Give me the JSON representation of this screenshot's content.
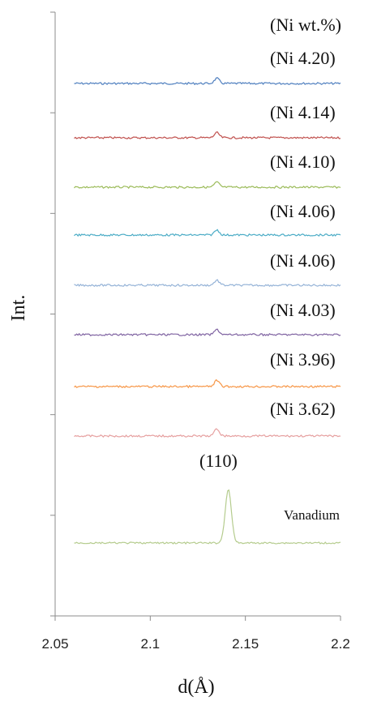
{
  "chart_data": {
    "type": "line",
    "title": "",
    "xlabel": "d(Å)",
    "ylabel": "Int.",
    "xlim": [
      2.05,
      2.2
    ],
    "x_ticks": [
      2.05,
      2.1,
      2.15,
      2.2
    ],
    "x_tick_labels": [
      "2.05",
      "2.1",
      "2.15",
      "2.2"
    ],
    "y_ticks": 6,
    "grid": false,
    "legend_header": "(Ni wt.%)",
    "peak_label": "(110)",
    "x_range": [
      2.06,
      2.2
    ],
    "series": [
      {
        "name": "(Ni 4.20)",
        "color": "#4F7FBF",
        "peak_d": 2.135,
        "peak_height": 0.25
      },
      {
        "name": "(Ni 4.14)",
        "color": "#C0504D",
        "peak_d": 2.135,
        "peak_height": 0.25
      },
      {
        "name": "(Ni 4.10)",
        "color": "#9BBB59",
        "peak_d": 2.135,
        "peak_height": 0.25
      },
      {
        "name": "(Ni 4.06)",
        "color": "#4BACC6",
        "peak_d": 2.135,
        "peak_height": 0.25
      },
      {
        "name": "(Ni 4.06)",
        "color": "#95B3D7",
        "peak_d": 2.135,
        "peak_height": 0.25
      },
      {
        "name": "(Ni 4.03)",
        "color": "#8064A2",
        "peak_d": 2.135,
        "peak_height": 0.25
      },
      {
        "name": "(Ni 3.96)",
        "color": "#F79646",
        "peak_d": 2.135,
        "peak_height": 0.3
      },
      {
        "name": "(Ni 3.62)",
        "color": "#E6A0A0",
        "peak_d": 2.135,
        "peak_height": 0.35
      },
      {
        "name": "Vanadium",
        "color": "#B5CC8E",
        "peak_d": 2.141,
        "peak_height": 2.65
      }
    ]
  }
}
